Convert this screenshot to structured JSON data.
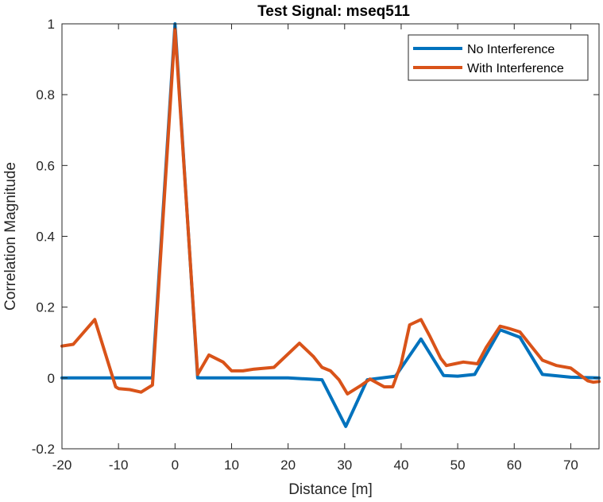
{
  "chart_data": {
    "type": "line",
    "title": "Test Signal: mseq511",
    "xlabel": "Distance [m]",
    "ylabel": "Correlation Magnitude",
    "xlim": [
      -20,
      75
    ],
    "ylim": [
      -0.2,
      1
    ],
    "xticks": [
      -20,
      -10,
      0,
      10,
      20,
      30,
      40,
      50,
      60,
      70
    ],
    "yticks": [
      -0.2,
      0,
      0.2,
      0.4,
      0.6,
      0.8,
      1
    ],
    "xtick_labels": [
      "-20",
      "-10",
      "0",
      "10",
      "20",
      "30",
      "40",
      "50",
      "60",
      "70"
    ],
    "ytick_labels": [
      "-0.2",
      "0",
      "0.2",
      "0.4",
      "0.6",
      "0.8",
      "1"
    ],
    "grid": false,
    "legend_position": "top-right",
    "series": [
      {
        "name": "No Interference",
        "color": "#0072BD",
        "x": [
          -20,
          -15,
          -10,
          -5,
          -4,
          0,
          4,
          10,
          20,
          26,
          30.2,
          34,
          39,
          43.5,
          47.5,
          50,
          53,
          57.5,
          61,
          65,
          70,
          75
        ],
        "y": [
          0,
          0,
          0,
          0,
          0,
          1,
          0,
          0,
          0,
          -0.005,
          -0.137,
          -0.005,
          0.005,
          0.11,
          0.007,
          0.005,
          0.01,
          0.136,
          0.115,
          0.01,
          0.002,
          0
        ]
      },
      {
        "name": "With Interference",
        "color": "#D95319",
        "x": [
          -20,
          -18,
          -14.2,
          -10.5,
          -10,
          -8,
          -6,
          -4,
          0,
          4,
          6,
          8.5,
          10,
          12,
          14,
          17.5,
          22,
          24.5,
          26,
          27.5,
          29,
          30.5,
          33,
          34.5,
          37,
          38.5,
          40,
          41.5,
          43.5,
          45,
          47,
          48,
          49.5,
          51,
          53.5,
          55,
          57.5,
          59,
          61,
          63,
          65,
          67.5,
          70,
          73,
          74,
          75
        ],
        "y": [
          0.09,
          0.095,
          0.165,
          -0.025,
          -0.03,
          -0.033,
          -0.04,
          -0.02,
          0.985,
          0.01,
          0.065,
          0.045,
          0.02,
          0.02,
          0.025,
          0.03,
          0.098,
          0.06,
          0.03,
          0.02,
          -0.005,
          -0.045,
          -0.02,
          -0.003,
          -0.025,
          -0.025,
          0.04,
          0.15,
          0.165,
          0.12,
          0.055,
          0.035,
          0.04,
          0.045,
          0.04,
          0.085,
          0.146,
          0.14,
          0.13,
          0.09,
          0.05,
          0.035,
          0.028,
          -0.008,
          -0.012,
          -0.01
        ]
      }
    ]
  }
}
